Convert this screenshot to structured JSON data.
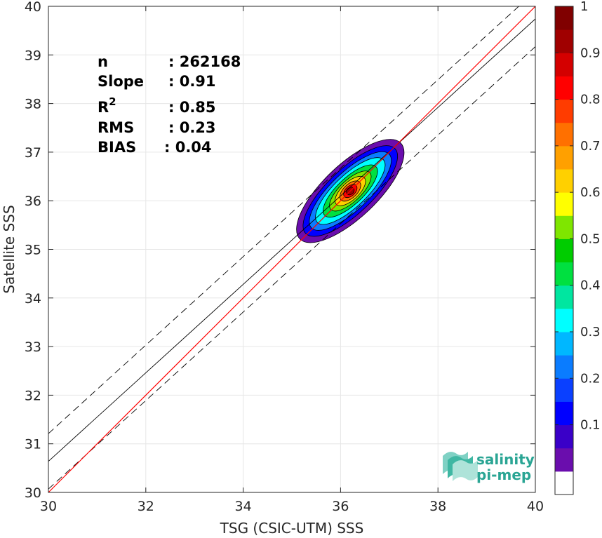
{
  "chart_data": {
    "type": "scatter",
    "subtype": "normalized density contour",
    "xlabel": "TSG (CSIC-UTM) SSS",
    "ylabel": "Satellite SSS",
    "xlim": [
      30,
      40
    ],
    "ylim": [
      30,
      40
    ],
    "xticks": [
      "30",
      "32",
      "34",
      "36",
      "38",
      "40"
    ],
    "yticks": [
      "30",
      "31",
      "32",
      "33",
      "34",
      "35",
      "36",
      "37",
      "38",
      "39",
      "40"
    ],
    "grid": true,
    "stats": [
      {
        "label": "n",
        "value": ": 262168"
      },
      {
        "label": "Slope",
        "value": ": 0.91"
      },
      {
        "label": "R",
        "sup": "2",
        "value": ": 0.85"
      },
      {
        "label": "RMS",
        "value": ": 0.23"
      },
      {
        "label": "BIAS",
        "value": ": 0.04"
      }
    ],
    "reference_line": {
      "slope": 1,
      "intercept": 0,
      "color": "#ff0000"
    },
    "fit_line": {
      "slope": 0.91,
      "intercept": 3.34,
      "color": "#000000"
    },
    "fit_bounds": {
      "offset": 0.57,
      "style": "dashed"
    },
    "density_center": {
      "x": 36.2,
      "y": 36.2
    },
    "contour_levels": [
      {
        "level": 0.05,
        "rx": 1.3,
        "ry": 0.55
      },
      {
        "level": 0.15,
        "rx": 1.15,
        "ry": 0.46
      },
      {
        "level": 0.25,
        "rx": 1.0,
        "ry": 0.39
      },
      {
        "level": 0.35,
        "rx": 0.85,
        "ry": 0.33
      },
      {
        "level": 0.45,
        "rx": 0.66,
        "ry": 0.27
      },
      {
        "level": 0.55,
        "rx": 0.5,
        "ry": 0.22
      },
      {
        "level": 0.65,
        "rx": 0.36,
        "ry": 0.18
      },
      {
        "level": 0.75,
        "rx": 0.24,
        "ry": 0.14
      },
      {
        "level": 0.85,
        "rx": 0.15,
        "ry": 0.1
      },
      {
        "level": 0.95,
        "rx": 0.08,
        "ry": 0.07
      }
    ],
    "colorbar": {
      "range": [
        0,
        1
      ],
      "ticks": [
        "0.1",
        "0.2",
        "0.3",
        "0.4",
        "0.5",
        "0.6",
        "0.7",
        "0.8",
        "0.9",
        "1"
      ],
      "colors": [
        "#ffffff",
        "#6a0dad",
        "#3a00c8",
        "#0000ff",
        "#0a40ff",
        "#0a7cff",
        "#00b7ff",
        "#00ffff",
        "#00e6a0",
        "#00e040",
        "#00cc00",
        "#7fe600",
        "#ffff00",
        "#ffd000",
        "#ffa000",
        "#ff7000",
        "#ff3c00",
        "#ff0000",
        "#d40000",
        "#a00000",
        "#800000"
      ]
    }
  },
  "logo": {
    "line1": "salinity",
    "line2": "pi-mep"
  }
}
